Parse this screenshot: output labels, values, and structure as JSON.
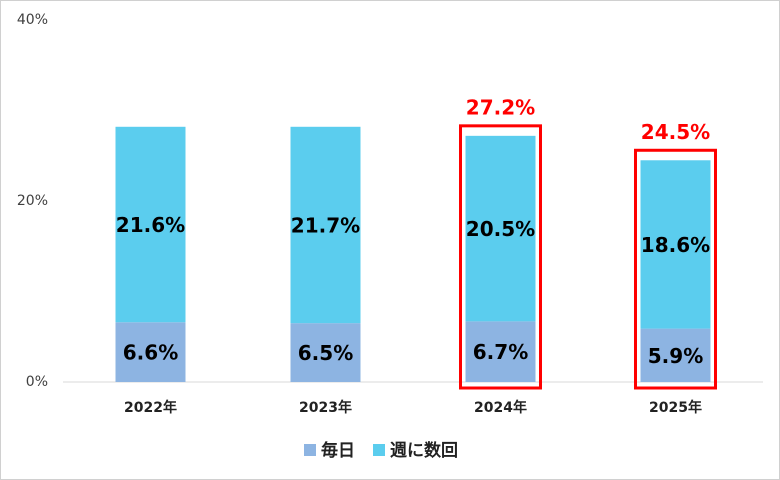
{
  "chart_data": {
    "type": "stacked_bar",
    "categories": [
      "2022年",
      "2023年",
      "2024年",
      "2025年"
    ],
    "series": [
      {
        "name": "毎日",
        "color": "#8db4e2",
        "values": [
          6.6,
          6.5,
          6.7,
          5.9
        ],
        "value_labels": [
          "6.6%",
          "6.5%",
          "6.7%",
          "5.9%"
        ]
      },
      {
        "name": "週に数回",
        "color": "#5bcdee",
        "values": [
          21.6,
          21.7,
          20.5,
          18.6
        ],
        "value_labels": [
          "21.6%",
          "21.7%",
          "20.5%",
          "18.6%"
        ]
      }
    ],
    "totals": [
      null,
      null,
      27.2,
      24.5
    ],
    "total_labels": [
      null,
      null,
      "27.2%",
      "24.5%"
    ],
    "highlight_color": "#ff0000",
    "ylim": [
      0,
      40
    ],
    "yticks": [
      {
        "value": 0,
        "label": "0%"
      },
      {
        "value": 20,
        "label": "20%"
      },
      {
        "value": 40,
        "label": "40%"
      }
    ],
    "grid": false,
    "legend": "bottom"
  }
}
